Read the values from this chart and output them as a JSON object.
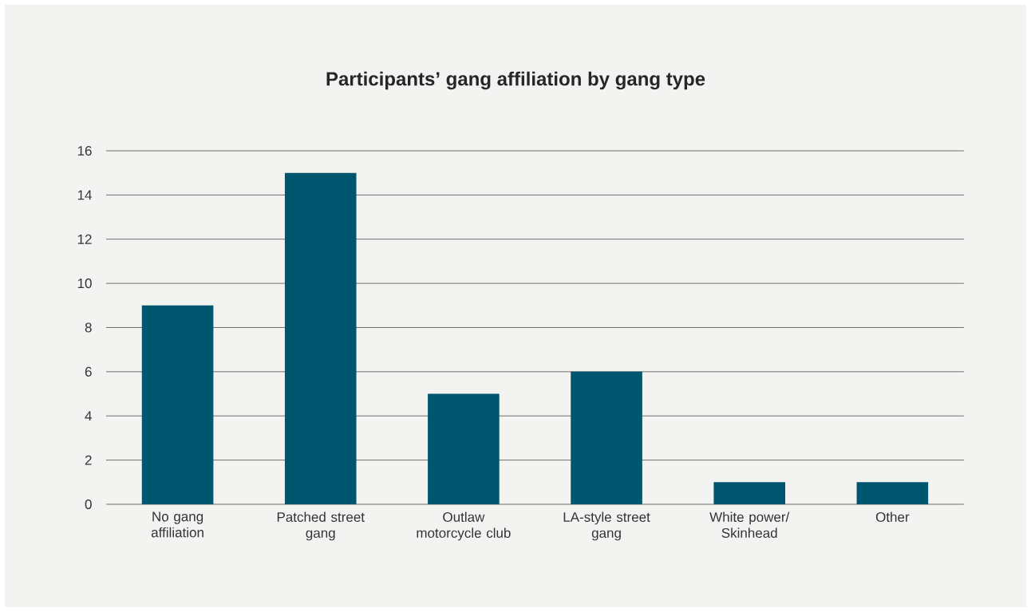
{
  "chart_data": {
    "type": "bar",
    "title": "Participants’ gang affiliation by gang type",
    "categories": [
      "No gang affiliation",
      "Patched street gang",
      "Outlaw motorcycle club",
      "LA-style street gang",
      "White power/ Skinhead",
      "Other"
    ],
    "values": [
      9,
      15,
      5,
      6,
      1,
      1
    ],
    "color": "#00566e",
    "ylim": [
      0,
      16
    ],
    "yticks": [
      0,
      2,
      4,
      6,
      8,
      10,
      12,
      14,
      16
    ],
    "grid": "y"
  }
}
